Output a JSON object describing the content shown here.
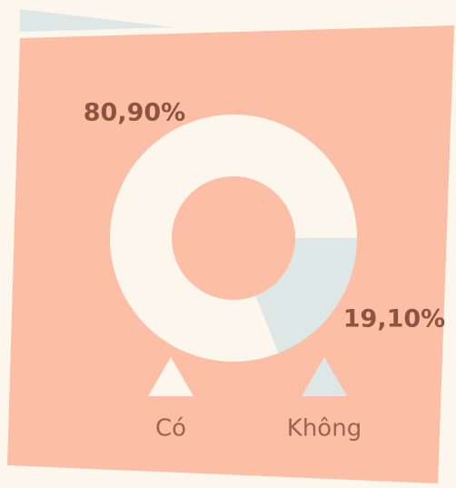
{
  "chart_data": {
    "type": "donut",
    "categories": [
      "Có",
      "Không"
    ],
    "values": [
      80.9,
      19.1
    ],
    "value_labels": [
      "80,90%",
      "19,10%"
    ],
    "colors": [
      "#fdf6ec",
      "#dde8e6"
    ]
  }
}
